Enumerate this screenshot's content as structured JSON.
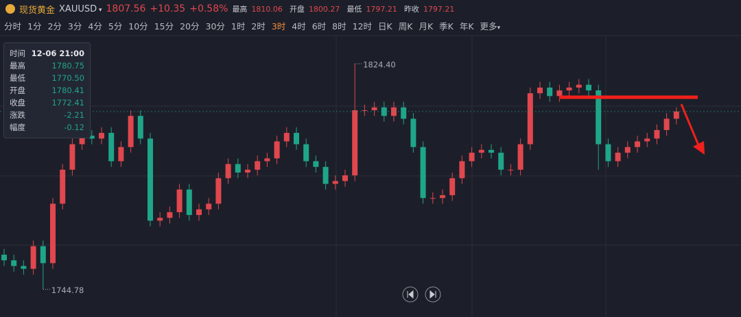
{
  "header": {
    "name": "现货黄金",
    "symbol": "XAUUSD",
    "price": "1807.56",
    "change": "+10.35",
    "change_pct": "+0.58%",
    "stats": [
      [
        "最高",
        "1810.06"
      ],
      [
        "开盘",
        "1800.27"
      ],
      [
        "最低",
        "1797.21"
      ],
      [
        "昨收",
        "1797.21"
      ]
    ]
  },
  "timeframes": [
    "分时",
    "1分",
    "2分",
    "3分",
    "4分",
    "5分",
    "10分",
    "15分",
    "20分",
    "30分",
    "1时",
    "2时",
    "3时",
    "4时",
    "6时",
    "8时",
    "12时",
    "日K",
    "周K",
    "月K",
    "季K",
    "年K",
    "更多"
  ],
  "active_timeframe": 12,
  "tooltip": {
    "rows": [
      [
        "时间",
        "12-06 21:00"
      ],
      [
        "最高",
        "1780.75"
      ],
      [
        "最低",
        "1770.50"
      ],
      [
        "开盘",
        "1780.41"
      ],
      [
        "收盘",
        "1772.41"
      ],
      [
        "涨跌",
        "-2.21"
      ],
      [
        "幅度",
        "-0.12"
      ]
    ]
  },
  "chart_data": {
    "type": "candlestick",
    "up_color": "#e0474e",
    "down_color": "#1fa58a",
    "ylim": [
      1742,
      1830
    ],
    "last_price": 1807.56,
    "extremes": [
      {
        "index": 36,
        "value": 1824.4,
        "label": "1824.40"
      },
      {
        "index": 4,
        "value": 1744.78,
        "label": "1744.78"
      }
    ],
    "open": [
      1757,
      1755,
      1753,
      1752,
      1760,
      1754,
      1775,
      1787,
      1796,
      1799,
      1798,
      1800,
      1790,
      1795,
      1806,
      1798,
      1769,
      1770,
      1772,
      1780,
      1771,
      1773,
      1775,
      1784,
      1789,
      1786,
      1787,
      1790,
      1791,
      1797,
      1800,
      1796,
      1790,
      1788,
      1782,
      1783,
      1785,
      1808,
      1808,
      1809,
      1806,
      1809,
      1805,
      1795,
      1777,
      1777,
      1778,
      1784,
      1790,
      1793,
      1794,
      1793,
      1787,
      1787,
      1796,
      1814,
      1816,
      1813,
      1815,
      1816,
      1817,
      1815,
      1796,
      1790,
      1793,
      1795,
      1797,
      1798,
      1801,
      1805
    ],
    "high": [
      1759,
      1757,
      1755,
      1762,
      1762,
      1777,
      1789,
      1798,
      1801,
      1801,
      1802,
      1802,
      1797,
      1808,
      1808,
      1800,
      1772,
      1774,
      1782,
      1782,
      1775,
      1777,
      1786,
      1791,
      1791,
      1789,
      1792,
      1793,
      1799,
      1802,
      1802,
      1798,
      1792,
      1790,
      1785,
      1787,
      1824.4,
      1810,
      1811,
      1811,
      1811,
      1811,
      1807,
      1797,
      1779,
      1780,
      1786,
      1792,
      1795,
      1796,
      1796,
      1795,
      1789,
      1798,
      1816,
      1818,
      1818,
      1817,
      1818,
      1819,
      1819,
      1817,
      1798,
      1795,
      1797,
      1799,
      1800,
      1803,
      1807,
      1809
    ],
    "low": [
      1753,
      1751,
      1750,
      1750,
      1744.78,
      1752,
      1773,
      1785,
      1794,
      1796,
      1796,
      1788,
      1788,
      1793,
      1796,
      1767,
      1767,
      1768,
      1770,
      1769,
      1769,
      1771,
      1773,
      1782,
      1784,
      1784,
      1785,
      1788,
      1789,
      1795,
      1794,
      1788,
      1786,
      1780,
      1780,
      1781,
      1783,
      1806,
      1806,
      1804,
      1804,
      1803,
      1793,
      1775,
      1775,
      1775,
      1776,
      1782,
      1788,
      1791,
      1791,
      1785,
      1785,
      1785,
      1794,
      1812,
      1811,
      1811,
      1813,
      1814,
      1813,
      1787,
      1788,
      1788,
      1791,
      1793,
      1795,
      1796,
      1799,
      1803
    ],
    "close": [
      1755,
      1753,
      1752,
      1760,
      1754,
      1775,
      1787,
      1796,
      1799,
      1798,
      1800,
      1790,
      1795,
      1806,
      1798,
      1769,
      1770,
      1772,
      1780,
      1771,
      1773,
      1775,
      1784,
      1789,
      1786,
      1787,
      1790,
      1791,
      1797,
      1800,
      1796,
      1790,
      1788,
      1782,
      1783,
      1785,
      1808,
      1808,
      1809,
      1806,
      1809,
      1805,
      1795,
      1777,
      1777,
      1778,
      1784,
      1790,
      1793,
      1794,
      1793,
      1787,
      1787,
      1796,
      1814,
      1816,
      1813,
      1815,
      1816,
      1817,
      1815,
      1796,
      1790,
      1793,
      1795,
      1797,
      1798,
      1801,
      1805,
      1807.56
    ]
  }
}
